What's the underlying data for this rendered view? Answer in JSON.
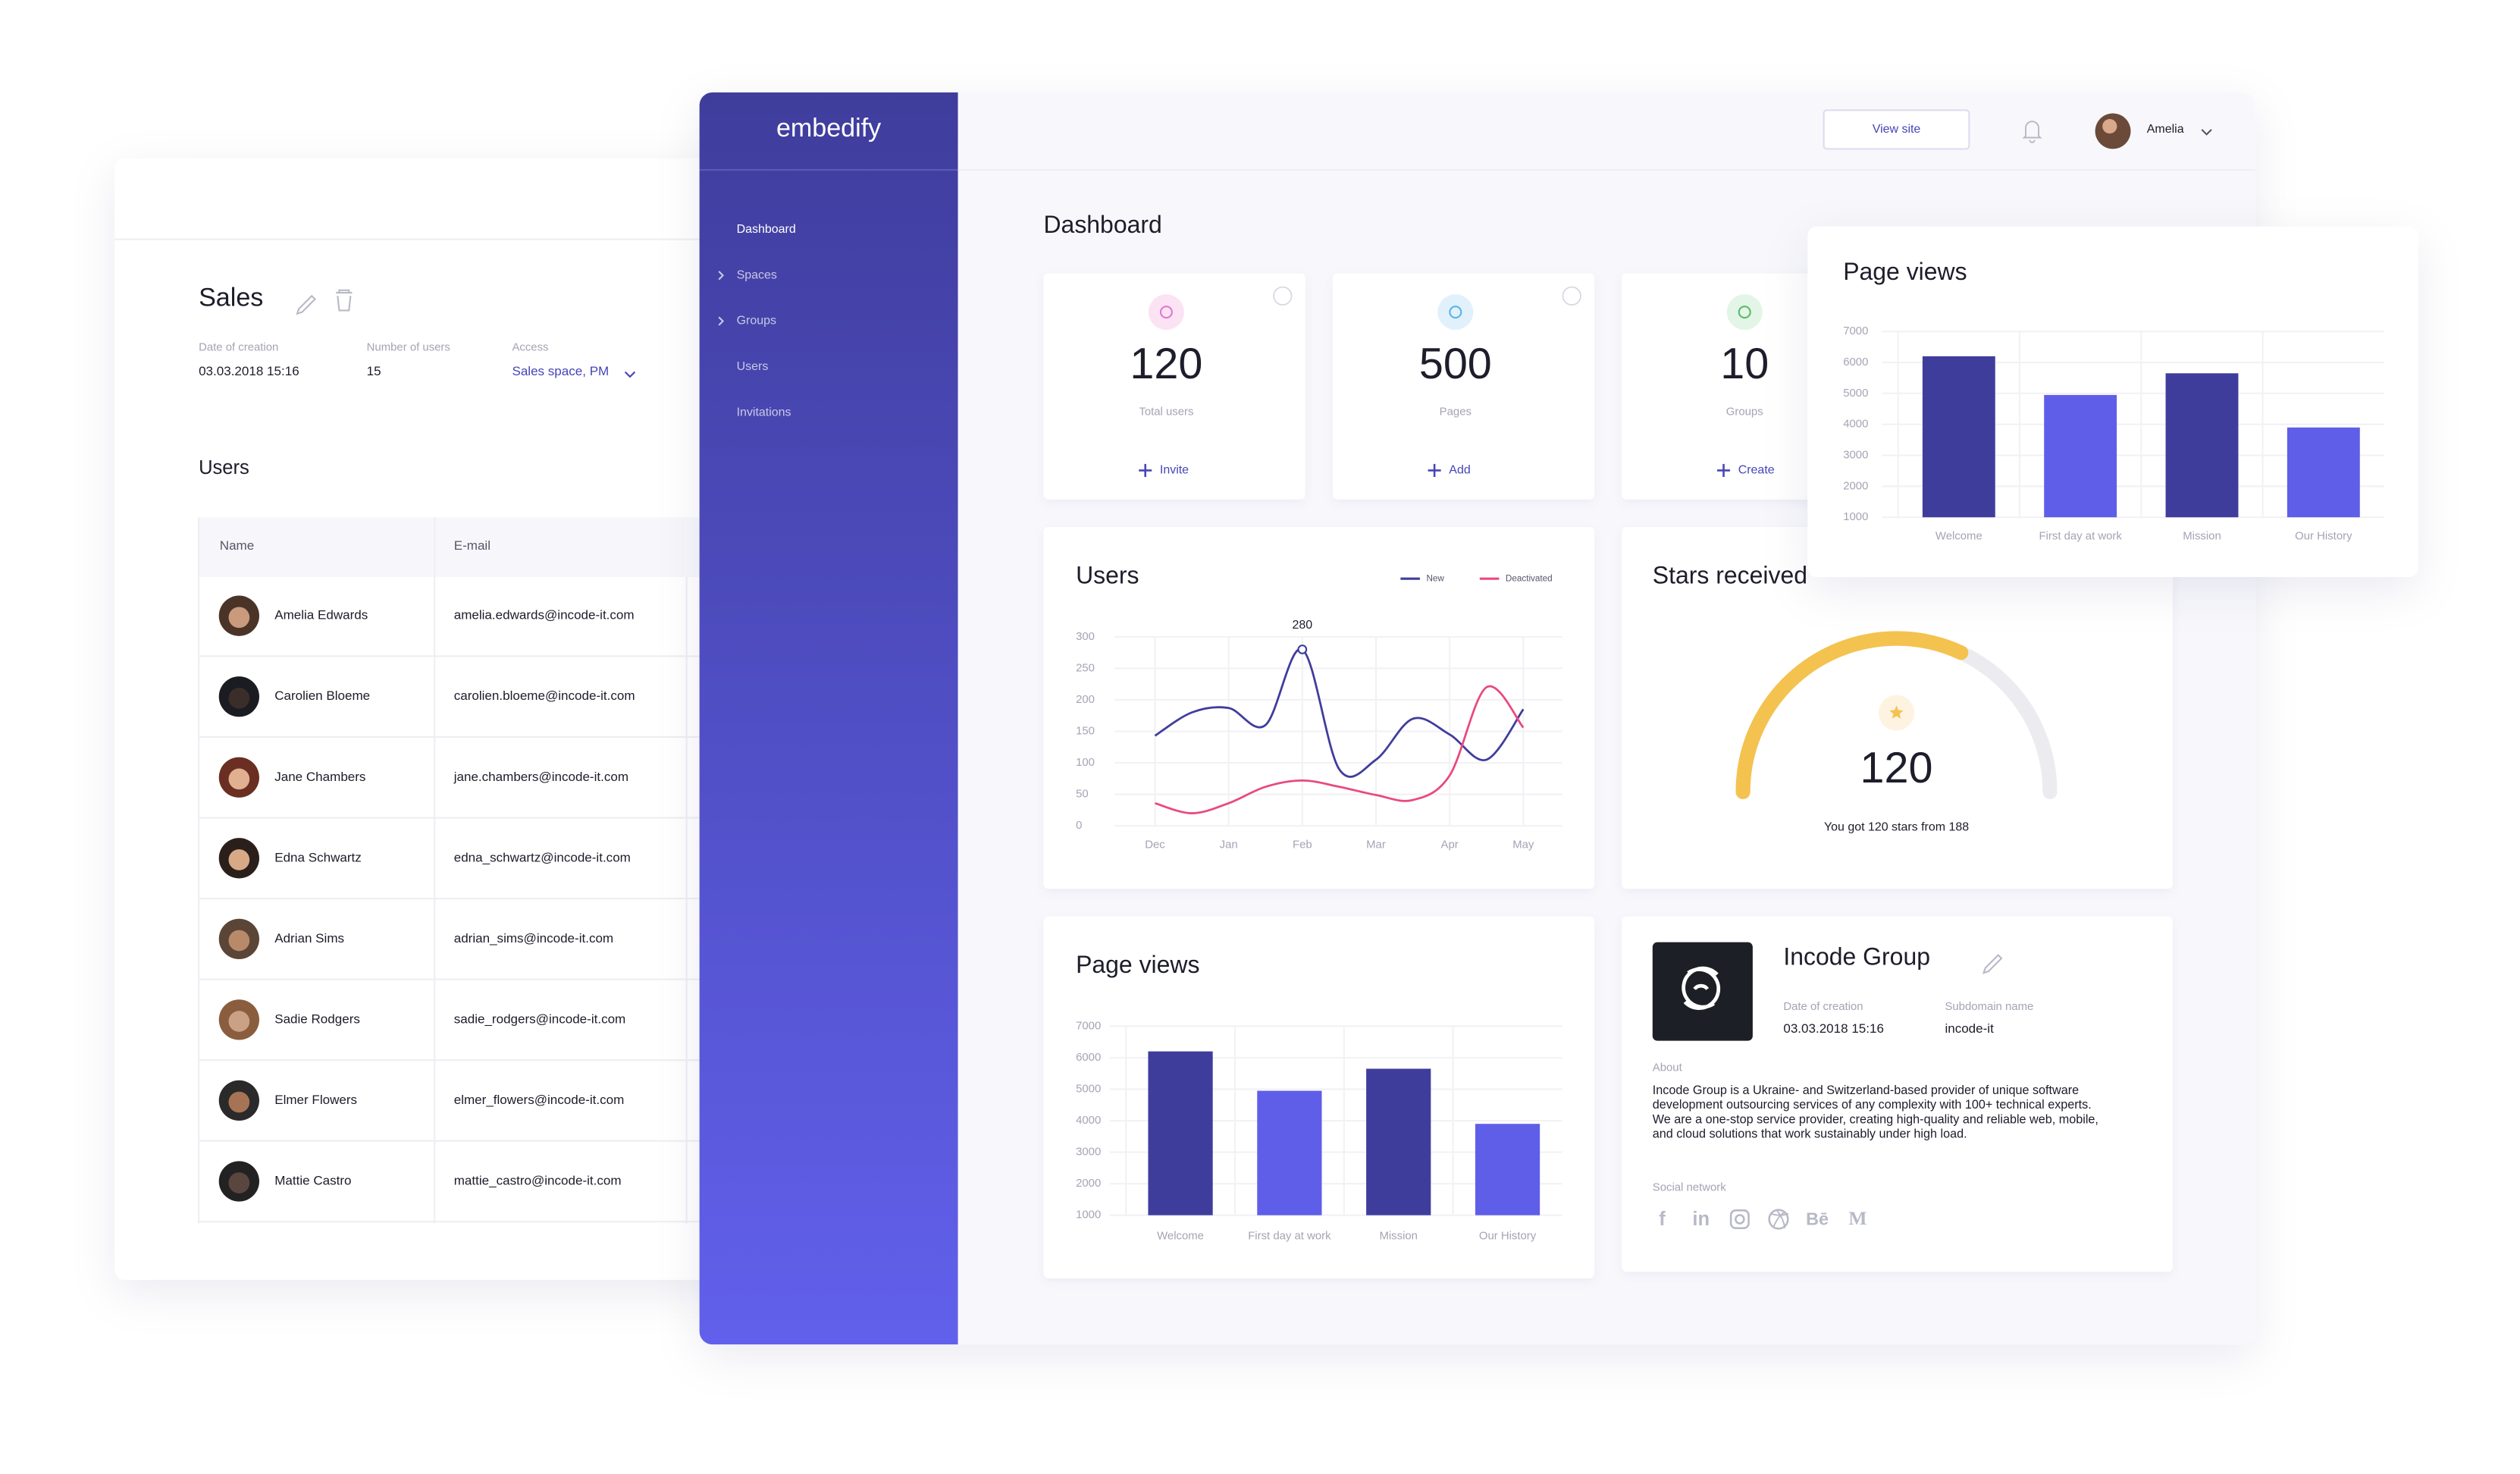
{
  "sales": {
    "title": "Sales",
    "fields": [
      {
        "label": "Date of creation",
        "value": "03.03.2018    15:16"
      },
      {
        "label": "Number of users",
        "value": "15"
      },
      {
        "label": "Access",
        "value": "Sales space, PM"
      }
    ],
    "users_title": "Users",
    "columns": [
      "Name",
      "E-mail"
    ],
    "rows": [
      [
        "Amelia Edwards",
        "amelia.edwards@incode-it.com"
      ],
      [
        "Carolien Bloeme",
        "carolien.bloeme@incode-it.com"
      ],
      [
        "Jane Chambers",
        "jane.chambers@incode-it.com"
      ],
      [
        "Edna Schwartz",
        "edna_schwartz@incode-it.com"
      ],
      [
        "Adrian Sims",
        "adrian_sims@incode-it.com"
      ],
      [
        "Sadie Rodgers",
        "sadie_rodgers@incode-it.com"
      ],
      [
        "Elmer Flowers",
        "elmer_flowers@incode-it.com"
      ],
      [
        "Mattie Castro",
        "mattie_castro@incode-it.com"
      ]
    ]
  },
  "sidebar": {
    "brand": "embedify",
    "nav": [
      "Dashboard",
      "Spaces",
      "Groups",
      "Users",
      "Invitations"
    ]
  },
  "header": {
    "view_site": "View site",
    "user": "Amelia"
  },
  "dashboard_title": "Dashboard",
  "stats": [
    {
      "value": 120,
      "label": "Total users",
      "action": "Invite"
    },
    {
      "value": 500,
      "label": "Pages",
      "action": "Add"
    },
    {
      "value": 10,
      "label": "Groups",
      "action": "Create"
    }
  ],
  "company": {
    "name": "Incode Group",
    "fields": [
      {
        "label": "Date of creation",
        "value": "03.03.2018    15:16"
      },
      {
        "label": "Subdomain name",
        "value": "incode-it"
      }
    ],
    "about_label": "About",
    "about_lines": [
      "Incode Group is a Ukraine- and Switzerland-based provider of unique software",
      "development outsourcing services of any complexity with 100+ technical experts.",
      "We are a one-stop service provider, creating high-quality and reliable web, mobile,",
      "and cloud solutions that work sustainably under high load."
    ],
    "social_label": "Social network",
    "social_icons": [
      "f",
      "in",
      "Bē",
      "M"
    ]
  },
  "chart_data": [
    {
      "type": "line",
      "title": "Users",
      "categories": [
        "Dec",
        null,
        "Jan",
        null,
        "Feb",
        null,
        "Mar",
        null,
        "Apr",
        null,
        "May"
      ],
      "series": [
        {
          "name": "New",
          "color": "#3f3d9c",
          "values": [
            143,
            180,
            187,
            160,
            280,
            90,
            105,
            170,
            145,
            105,
            185
          ]
        },
        {
          "name": "Deactivated",
          "color": "#e94a7f",
          "values": [
            36,
            20,
            36,
            62,
            72,
            62,
            49,
            41,
            80,
            220,
            156
          ]
        }
      ],
      "ylim": [
        0,
        300
      ],
      "yticks": [
        0,
        50,
        100,
        150,
        200,
        250,
        300
      ],
      "grid": true
    },
    {
      "type": "gauge",
      "title": "Stars received",
      "value": 120,
      "max": 188,
      "caption": "You got 120 stars from 188",
      "color": "#f4c24f",
      "track_color": "#ececf0"
    },
    {
      "type": "bar",
      "title": "Page views",
      "categories": [
        "Welcome",
        "First day at work",
        "Mission",
        "Our History"
      ],
      "values": [
        6200,
        4950,
        5650,
        3900
      ],
      "colors": [
        "#3f3d9c",
        "#5f5ee8",
        "#3f3d9c",
        "#5f5ee8"
      ],
      "ylim": [
        1000,
        7000
      ],
      "yticks": [
        1000,
        2000,
        3000,
        4000,
        5000,
        6000,
        7000
      ],
      "grid": true
    },
    {
      "type": "bar",
      "title": "Page views",
      "categories": [
        "Welcome",
        "First day at work",
        "Mission",
        "Our History"
      ],
      "values": [
        6200,
        4950,
        5650,
        3900
      ],
      "colors": [
        "#3f3d9c",
        "#5f5ee8",
        "#3f3d9c",
        "#5f5ee8"
      ],
      "ylim": [
        1000,
        7000
      ],
      "yticks": [
        1000,
        2000,
        3000,
        4000,
        5000,
        6000,
        7000
      ],
      "grid": true
    }
  ]
}
